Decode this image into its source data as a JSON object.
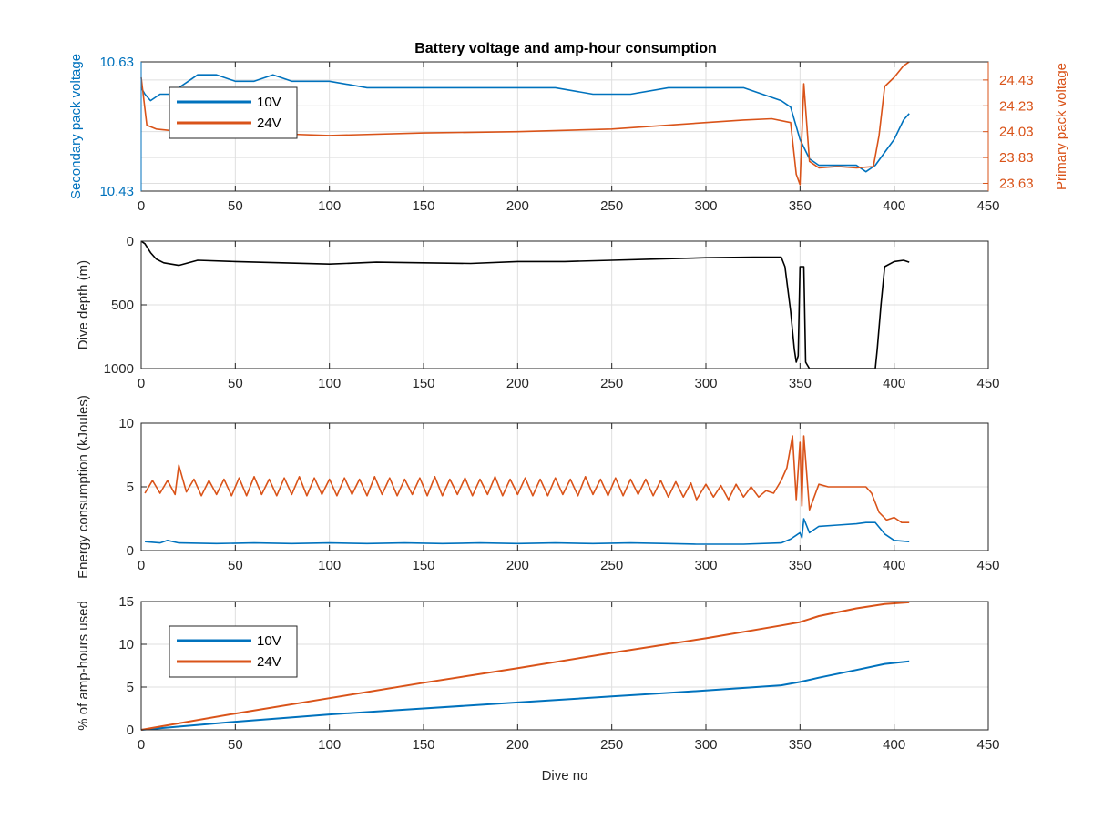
{
  "title": "Battery voltage and amp-hour consumption",
  "colors": {
    "blue": "#0072BD",
    "orange": "#D95319",
    "black": "#000000",
    "grid": "#dfdfdf"
  },
  "chart_data": [
    {
      "type": "line",
      "title": "Battery voltage and amp-hour consumption",
      "xlabel": "",
      "ylabel": "Secondary pack voltage",
      "ylabel_right": "Primary pack voltage",
      "xlim": [
        0,
        450
      ],
      "xticks": [
        "0",
        "50",
        "100",
        "150",
        "200",
        "250",
        "300",
        "350",
        "400",
        "450"
      ],
      "ylim": [
        10.43,
        10.63
      ],
      "yticks": [
        "10.43",
        "10.63"
      ],
      "ylim_right": [
        23.57,
        24.57
      ],
      "yticks_right": [
        "23.63",
        "23.83",
        "24.03",
        "24.23",
        "24.43"
      ],
      "grid": true,
      "legend": {
        "position": "top-left",
        "entries": [
          "10V",
          "24V"
        ]
      },
      "series": [
        {
          "name": "10V",
          "axis": "left",
          "color": "#0072BD",
          "x": [
            0,
            2,
            5,
            10,
            15,
            20,
            25,
            30,
            40,
            50,
            60,
            70,
            80,
            90,
            100,
            120,
            140,
            160,
            180,
            200,
            220,
            240,
            260,
            280,
            300,
            320,
            340,
            345,
            350,
            355,
            360,
            370,
            380,
            385,
            390,
            395,
            400,
            405,
            408
          ],
          "y": [
            10.59,
            10.58,
            10.57,
            10.58,
            10.58,
            10.59,
            10.6,
            10.61,
            10.61,
            10.6,
            10.6,
            10.61,
            10.6,
            10.6,
            10.6,
            10.59,
            10.59,
            10.59,
            10.59,
            10.59,
            10.59,
            10.58,
            10.58,
            10.59,
            10.59,
            10.59,
            10.57,
            10.56,
            10.51,
            10.48,
            10.47,
            10.47,
            10.47,
            10.46,
            10.47,
            10.49,
            10.51,
            10.54,
            10.55
          ]
        },
        {
          "name": "24V",
          "axis": "right",
          "color": "#D95319",
          "x": [
            0,
            3,
            8,
            15,
            20,
            25,
            30,
            40,
            50,
            60,
            80,
            100,
            150,
            200,
            250,
            300,
            320,
            335,
            345,
            348,
            350,
            352,
            355,
            360,
            370,
            380,
            389,
            392,
            395,
            400,
            405,
            408
          ],
          "y": [
            24.45,
            24.08,
            24.05,
            24.04,
            24.04,
            24.03,
            24.02,
            24.01,
            24.0,
            24.01,
            24.01,
            24.0,
            24.02,
            24.03,
            24.05,
            24.1,
            24.12,
            24.13,
            24.1,
            23.7,
            23.62,
            24.4,
            23.8,
            23.75,
            23.76,
            23.75,
            23.76,
            24.0,
            24.38,
            24.45,
            24.54,
            24.57
          ]
        }
      ]
    },
    {
      "type": "line",
      "xlabel": "",
      "ylabel": "Dive depth (m)",
      "xlim": [
        0,
        450
      ],
      "xticks": [
        "0",
        "50",
        "100",
        "150",
        "200",
        "250",
        "300",
        "350",
        "400",
        "450"
      ],
      "ylim": [
        0,
        1000
      ],
      "y_reversed": true,
      "yticks": [
        "0",
        "500",
        "1000"
      ],
      "grid": true,
      "series": [
        {
          "color": "#000000",
          "x": [
            0,
            2,
            5,
            8,
            12,
            20,
            30,
            50,
            75,
            100,
            125,
            150,
            175,
            200,
            225,
            250,
            275,
            300,
            325,
            340,
            342,
            345,
            347,
            348,
            349,
            350,
            352,
            353,
            355,
            360,
            380,
            390,
            391,
            393,
            395,
            400,
            405,
            408
          ],
          "y": [
            0,
            20,
            90,
            140,
            170,
            190,
            150,
            160,
            170,
            180,
            165,
            170,
            175,
            160,
            160,
            150,
            140,
            130,
            125,
            125,
            200,
            550,
            850,
            950,
            900,
            200,
            200,
            950,
            1000,
            1000,
            1000,
            1000,
            850,
            500,
            200,
            160,
            150,
            165
          ]
        }
      ]
    },
    {
      "type": "line",
      "xlabel": "",
      "ylabel": "Energy consumption (kJoules)",
      "xlim": [
        0,
        450
      ],
      "xticks": [
        "0",
        "50",
        "100",
        "150",
        "200",
        "250",
        "300",
        "350",
        "400",
        "450"
      ],
      "ylim": [
        0,
        10
      ],
      "yticks": [
        "0",
        "5",
        "10"
      ],
      "grid": true,
      "series": [
        {
          "name": "24V",
          "color": "#D95319",
          "x": [
            2,
            6,
            10,
            14,
            18,
            20,
            24,
            28,
            32,
            36,
            40,
            44,
            48,
            52,
            56,
            60,
            64,
            68,
            72,
            76,
            80,
            84,
            88,
            92,
            96,
            100,
            104,
            108,
            112,
            116,
            120,
            124,
            128,
            132,
            136,
            140,
            144,
            148,
            152,
            156,
            160,
            164,
            168,
            172,
            176,
            180,
            184,
            188,
            192,
            196,
            200,
            204,
            208,
            212,
            216,
            220,
            224,
            228,
            232,
            236,
            240,
            244,
            248,
            252,
            256,
            260,
            264,
            268,
            272,
            276,
            280,
            284,
            288,
            292,
            295,
            300,
            304,
            308,
            312,
            316,
            320,
            324,
            328,
            332,
            336,
            340,
            343,
            346,
            348,
            350,
            351,
            352,
            355,
            360,
            365,
            370,
            375,
            380,
            385,
            388,
            392,
            396,
            400,
            404,
            408
          ],
          "y": [
            4.5,
            5.5,
            4.5,
            5.5,
            4.4,
            6.7,
            4.6,
            5.6,
            4.3,
            5.5,
            4.4,
            5.6,
            4.3,
            5.7,
            4.3,
            5.8,
            4.4,
            5.6,
            4.3,
            5.7,
            4.4,
            5.8,
            4.3,
            5.7,
            4.4,
            5.6,
            4.3,
            5.7,
            4.4,
            5.6,
            4.3,
            5.8,
            4.4,
            5.7,
            4.3,
            5.6,
            4.4,
            5.7,
            4.3,
            5.8,
            4.3,
            5.6,
            4.4,
            5.7,
            4.3,
            5.6,
            4.4,
            5.8,
            4.3,
            5.6,
            4.4,
            5.7,
            4.3,
            5.6,
            4.3,
            5.7,
            4.4,
            5.6,
            4.3,
            5.8,
            4.4,
            5.6,
            4.3,
            5.7,
            4.3,
            5.6,
            4.4,
            5.6,
            4.3,
            5.5,
            4.2,
            5.4,
            4.2,
            5.3,
            4.0,
            5.2,
            4.2,
            5.1,
            4.0,
            5.2,
            4.2,
            5.0,
            4.2,
            4.7,
            4.5,
            5.5,
            6.5,
            9.0,
            4.0,
            8.5,
            3.5,
            9.0,
            3.2,
            5.2,
            5.0,
            5.0,
            5.0,
            5.0,
            5.0,
            4.5,
            3.0,
            2.4,
            2.6,
            2.2,
            2.2
          ]
        },
        {
          "name": "10V",
          "color": "#0072BD",
          "x": [
            2,
            10,
            14,
            20,
            40,
            60,
            80,
            100,
            120,
            140,
            160,
            180,
            200,
            220,
            240,
            260,
            280,
            295,
            300,
            320,
            340,
            345,
            348,
            350,
            351,
            352,
            355,
            360,
            370,
            380,
            385,
            390,
            395,
            400,
            408
          ],
          "y": [
            0.7,
            0.6,
            0.8,
            0.6,
            0.55,
            0.6,
            0.55,
            0.6,
            0.55,
            0.6,
            0.55,
            0.6,
            0.55,
            0.6,
            0.55,
            0.6,
            0.55,
            0.5,
            0.5,
            0.5,
            0.6,
            0.9,
            1.2,
            1.4,
            1.0,
            2.5,
            1.4,
            1.9,
            2.0,
            2.1,
            2.2,
            2.2,
            1.3,
            0.8,
            0.7
          ]
        }
      ]
    },
    {
      "type": "line",
      "xlabel": "Dive no",
      "ylabel": "% of amp-hours used",
      "xlim": [
        0,
        450
      ],
      "xticks": [
        "0",
        "50",
        "100",
        "150",
        "200",
        "250",
        "300",
        "350",
        "400",
        "450"
      ],
      "ylim": [
        0,
        15
      ],
      "yticks": [
        "0",
        "5",
        "10",
        "15"
      ],
      "grid": true,
      "legend": {
        "position": "top-left",
        "entries": [
          "10V",
          "24V"
        ]
      },
      "series": [
        {
          "name": "10V",
          "color": "#0072BD",
          "x": [
            0,
            50,
            100,
            150,
            200,
            250,
            300,
            340,
            350,
            360,
            380,
            395,
            408
          ],
          "y": [
            0,
            0.95,
            1.8,
            2.5,
            3.2,
            3.9,
            4.6,
            5.2,
            5.6,
            6.1,
            7.0,
            7.7,
            8.0
          ]
        },
        {
          "name": "24V",
          "color": "#D95319",
          "x": [
            0,
            50,
            100,
            150,
            200,
            250,
            300,
            340,
            350,
            360,
            380,
            395,
            408
          ],
          "y": [
            0,
            1.9,
            3.7,
            5.5,
            7.2,
            9.0,
            10.7,
            12.2,
            12.6,
            13.3,
            14.2,
            14.7,
            14.9
          ]
        }
      ]
    }
  ]
}
